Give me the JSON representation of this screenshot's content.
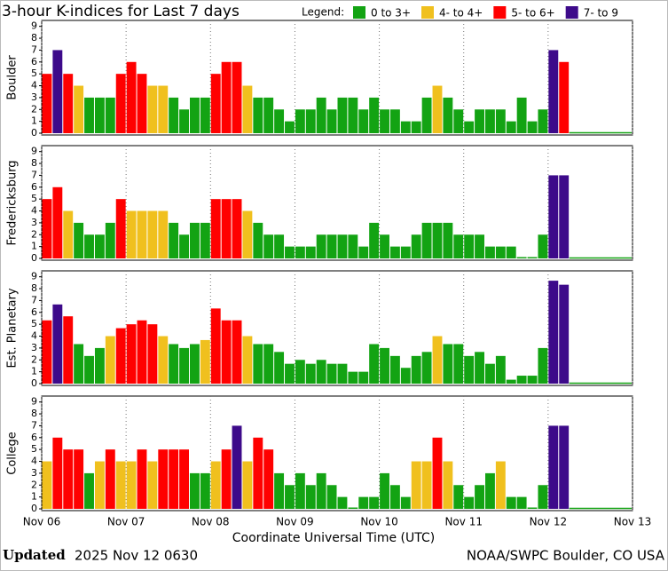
{
  "title": "3-hour K-indices for Last 7 days",
  "legend": {
    "title": "Legend:",
    "items": [
      {
        "name": "0 to 3+",
        "color": "#13a313",
        "min": 0
      },
      {
        "name": "4- to 4+",
        "color": "#f0c01e",
        "min": 3.67
      },
      {
        "name": "5- to 6+",
        "color": "#ff0000",
        "min": 4.67
      },
      {
        "name": "7- to 9",
        "color": "#3d0a8a",
        "min": 6.67
      }
    ]
  },
  "x_label": "Coordinate Universal Time (UTC)",
  "footer": {
    "updated_label": "Updated",
    "updated_value": "2025 Nov 12 0630",
    "credit": "NOAA/SWPC Boulder, CO USA"
  },
  "chart_data": [
    {
      "type": "bar",
      "ylabel": "Boulder",
      "ylim": [
        0,
        9.5
      ],
      "yticks": [
        0,
        1,
        2,
        3,
        4,
        5,
        6,
        7,
        8,
        9
      ],
      "values": [
        5,
        7,
        5,
        4,
        3,
        3,
        3,
        5,
        6,
        5,
        4,
        4,
        3,
        2,
        3,
        3,
        5,
        6,
        6,
        4,
        3,
        3,
        2,
        1,
        2,
        2,
        3,
        2,
        3,
        3,
        2,
        3,
        2,
        2,
        1,
        1,
        3,
        4,
        3,
        2,
        1,
        2,
        2,
        2,
        1,
        3,
        1,
        2,
        7,
        6
      ]
    },
    {
      "type": "bar",
      "ylabel": "Fredericksburg",
      "ylim": [
        0,
        9.5
      ],
      "yticks": [
        0,
        1,
        2,
        3,
        4,
        5,
        6,
        7,
        8,
        9
      ],
      "values": [
        5,
        6,
        4,
        3,
        2,
        2,
        3,
        5,
        4,
        4,
        4,
        4,
        3,
        2,
        3,
        3,
        5,
        5,
        5,
        4,
        3,
        2,
        2,
        1,
        1,
        1,
        2,
        2,
        2,
        2,
        1,
        3,
        2,
        1,
        1,
        2,
        3,
        3,
        3,
        2,
        2,
        2,
        1,
        1,
        1,
        0,
        0,
        2,
        7,
        7
      ]
    },
    {
      "type": "bar",
      "ylabel": "Est. Planetary",
      "ylim": [
        0,
        9.5
      ],
      "yticks": [
        0,
        1,
        2,
        3,
        4,
        5,
        6,
        7,
        8,
        9
      ],
      "values": [
        5.33,
        6.67,
        5.67,
        3.33,
        2.33,
        3,
        4,
        4.67,
        5,
        5.33,
        5,
        4,
        3.33,
        3,
        3.33,
        3.67,
        6.33,
        5.33,
        5.33,
        4,
        3.33,
        3.33,
        2.67,
        1.67,
        2,
        1.67,
        2,
        1.67,
        1.67,
        1,
        1,
        3.33,
        3,
        2.33,
        1.33,
        2.33,
        2.67,
        4,
        3.33,
        3.33,
        2.33,
        2.67,
        1.67,
        2.33,
        0.33,
        0.67,
        0.67,
        3,
        8.67,
        8.33
      ]
    },
    {
      "type": "bar",
      "ylabel": "College",
      "ylim": [
        0,
        9.5
      ],
      "yticks": [
        0,
        1,
        2,
        3,
        4,
        5,
        6,
        7,
        8,
        9
      ],
      "values": [
        4,
        6,
        5,
        5,
        3,
        4,
        5,
        4,
        4,
        5,
        4,
        5,
        5,
        5,
        3,
        3,
        4,
        5,
        7,
        4,
        6,
        5,
        3,
        2,
        3,
        2,
        3,
        2,
        1,
        0,
        1,
        1,
        3,
        2,
        1,
        4,
        4,
        6,
        4,
        2,
        1,
        2,
        3,
        4,
        1,
        1,
        0,
        2,
        7,
        7
      ],
      "xlim": [
        0,
        56
      ],
      "xticks": [
        {
          "value": 0,
          "label": "Nov 06"
        },
        {
          "value": 8,
          "label": "Nov 07"
        },
        {
          "value": 16,
          "label": "Nov 08"
        },
        {
          "value": 24,
          "label": "Nov 09"
        },
        {
          "value": 32,
          "label": "Nov 10"
        },
        {
          "value": 40,
          "label": "Nov 11"
        },
        {
          "value": 48,
          "label": "Nov 12"
        },
        {
          "value": 56,
          "label": "Nov 13"
        }
      ]
    }
  ]
}
